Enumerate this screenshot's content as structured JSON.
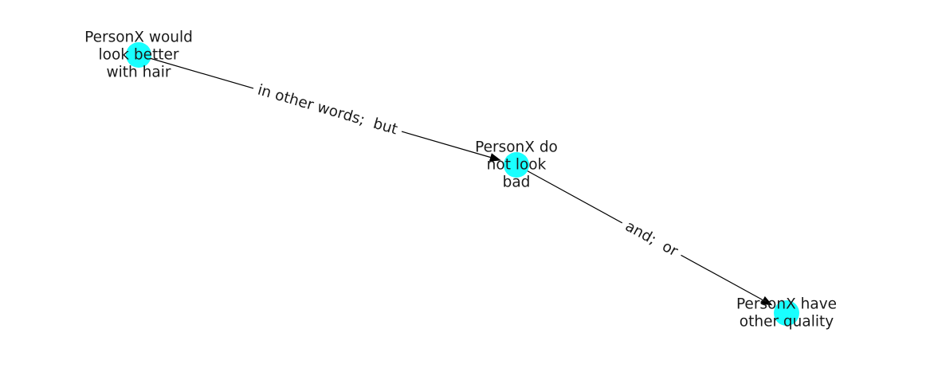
{
  "colors": {
    "node_fill": "#19ffff",
    "edge": "#000000",
    "text": "#1a1a1a"
  },
  "graph": {
    "nodes": [
      {
        "id": "n1",
        "label_lines": [
          "PersonX would",
          "look better",
          "with hair"
        ]
      },
      {
        "id": "n2",
        "label_lines": [
          "PersonX do",
          "not look",
          "bad"
        ]
      },
      {
        "id": "n3",
        "label_lines": [
          "PersonX have",
          "other quality"
        ]
      }
    ],
    "edges": [
      {
        "id": "e1",
        "source": "n1",
        "target": "n2",
        "label": "in other words;  but"
      },
      {
        "id": "e2",
        "source": "n2",
        "target": "n3",
        "label": "and;  or"
      }
    ]
  }
}
